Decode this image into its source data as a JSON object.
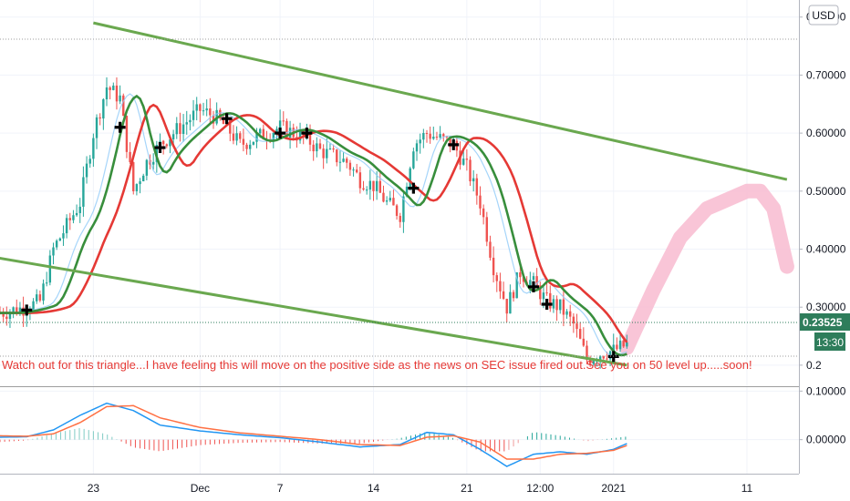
{
  "currency_badge": "USD",
  "price_tag": "0.23525",
  "countdown_tag": "13:30",
  "annotation": "Watch out for this triangle...I have feeling this will move on the positive side as the news on SEC issue fired out.See you on  50 level up.....soon!",
  "colors": {
    "up_candle": "#26a69a",
    "down_candle": "#ef5350",
    "trendline": "#6aa84f",
    "ema_fast": "#388e3c",
    "ema_slow": "#e53935",
    "projection": "#f8bbd0",
    "macd_line": "#2196f3",
    "signal_line": "#ff7043",
    "price_tag_bg": "#2e7d5b"
  },
  "chart_data": [
    {
      "type": "candlestick",
      "title": "",
      "ylabel": "USD",
      "ylim": [
        0.17,
        0.82
      ],
      "y_ticks": [
        "0.80000",
        "0.70000",
        "0.60000",
        "0.50000",
        "0.40000",
        "0.30000",
        "0.2"
      ],
      "x_ticks": [
        "23",
        "Dec",
        "7",
        "14",
        "21",
        "12:00",
        "2021",
        "11"
      ],
      "x_domain": [
        "2020-11-16",
        "2021-01-14"
      ],
      "last_price": 0.23525,
      "close_path": [
        [
          "2020-11-16",
          0.29
        ],
        [
          "2020-11-18",
          0.3
        ],
        [
          "2020-11-19",
          0.31
        ],
        [
          "2020-11-20",
          0.4
        ],
        [
          "2020-11-21",
          0.44
        ],
        [
          "2020-11-22",
          0.48
        ],
        [
          "2020-11-23",
          0.6
        ],
        [
          "2020-11-24",
          0.68
        ],
        [
          "2020-11-25",
          0.66
        ],
        [
          "2020-11-26",
          0.5
        ],
        [
          "2020-11-27",
          0.55
        ],
        [
          "2020-11-28",
          0.58
        ],
        [
          "2020-11-29",
          0.6
        ],
        [
          "2020-11-30",
          0.62
        ],
        [
          "2020-12-01",
          0.64
        ],
        [
          "2020-12-02",
          0.63
        ],
        [
          "2020-12-03",
          0.61
        ],
        [
          "2020-12-04",
          0.58
        ],
        [
          "2020-12-05",
          0.59
        ],
        [
          "2020-12-06",
          0.6
        ],
        [
          "2020-12-07",
          0.61
        ],
        [
          "2020-12-08",
          0.6
        ],
        [
          "2020-12-09",
          0.59
        ],
        [
          "2020-12-10",
          0.57
        ],
        [
          "2020-12-11",
          0.56
        ],
        [
          "2020-12-12",
          0.55
        ],
        [
          "2020-12-13",
          0.52
        ],
        [
          "2020-12-14",
          0.51
        ],
        [
          "2020-12-15",
          0.48
        ],
        [
          "2020-12-16",
          0.46
        ],
        [
          "2020-12-17",
          0.58
        ],
        [
          "2020-12-18",
          0.6
        ],
        [
          "2020-12-19",
          0.59
        ],
        [
          "2020-12-20",
          0.58
        ],
        [
          "2020-12-21",
          0.54
        ],
        [
          "2020-12-22",
          0.48
        ],
        [
          "2020-12-23",
          0.37
        ],
        [
          "2020-12-24",
          0.3
        ],
        [
          "2020-12-25",
          0.36
        ],
        [
          "2020-12-26",
          0.34
        ],
        [
          "2020-12-27",
          0.31
        ],
        [
          "2020-12-28",
          0.3
        ],
        [
          "2020-12-29",
          0.27
        ],
        [
          "2020-12-30",
          0.21
        ],
        [
          "2020-12-31",
          0.22
        ],
        [
          "2021-01-01",
          0.225
        ],
        [
          "2021-01-02",
          0.23525
        ]
      ],
      "markers": [
        [
          "2020-11-18",
          0.295
        ],
        [
          "2020-11-25",
          0.61
        ],
        [
          "2020-11-28",
          0.575
        ],
        [
          "2020-12-03",
          0.625
        ],
        [
          "2020-12-07",
          0.6
        ],
        [
          "2020-12-09",
          0.6
        ],
        [
          "2020-12-17",
          0.505
        ],
        [
          "2020-12-20",
          0.58
        ],
        [
          "2020-12-26",
          0.335
        ],
        [
          "2020-12-27",
          0.305
        ],
        [
          "2021-01-01",
          0.215
        ]
      ],
      "trendlines": [
        {
          "from": [
            "2020-11-23",
            0.79
          ],
          "to": [
            "2021-01-14",
            0.52
          ]
        },
        {
          "from": [
            "2020-11-12",
            0.4
          ],
          "to": [
            "2021-01-02",
            0.2
          ]
        }
      ],
      "projection": [
        [
          "2021-01-02",
          0.23
        ],
        [
          "2021-01-04",
          0.33
        ],
        [
          "2021-01-06",
          0.42
        ],
        [
          "2021-01-08",
          0.47
        ],
        [
          "2021-01-09",
          0.48
        ],
        [
          "2021-01-11",
          0.5
        ],
        [
          "2021-01-12",
          0.5
        ],
        [
          "2021-01-13",
          0.47
        ],
        [
          "2021-01-14",
          0.37
        ]
      ]
    },
    {
      "type": "macd",
      "ylim": [
        -0.07,
        0.11
      ],
      "y_ticks": [
        "0.10000",
        "0.00000"
      ],
      "macd": [
        [
          "2020-11-16",
          0.005
        ],
        [
          "2020-11-18",
          0.006
        ],
        [
          "2020-11-20",
          0.02
        ],
        [
          "2020-11-22",
          0.05
        ],
        [
          "2020-11-24",
          0.075
        ],
        [
          "2020-11-26",
          0.06
        ],
        [
          "2020-11-28",
          0.03
        ],
        [
          "2020-12-01",
          0.018
        ],
        [
          "2020-12-04",
          0.01
        ],
        [
          "2020-12-07",
          0.004
        ],
        [
          "2020-12-10",
          -0.005
        ],
        [
          "2020-12-13",
          -0.015
        ],
        [
          "2020-12-16",
          -0.01
        ],
        [
          "2020-12-18",
          0.015
        ],
        [
          "2020-12-20",
          0.01
        ],
        [
          "2020-12-22",
          -0.02
        ],
        [
          "2020-12-24",
          -0.055
        ],
        [
          "2020-12-26",
          -0.03
        ],
        [
          "2020-12-28",
          -0.025
        ],
        [
          "2020-12-30",
          -0.03
        ],
        [
          "2021-01-01",
          -0.02
        ],
        [
          "2021-01-02",
          -0.008
        ]
      ],
      "signal": [
        [
          "2020-11-16",
          0.008
        ],
        [
          "2020-11-18",
          0.007
        ],
        [
          "2020-11-20",
          0.012
        ],
        [
          "2020-11-22",
          0.035
        ],
        [
          "2020-11-24",
          0.068
        ],
        [
          "2020-11-26",
          0.07
        ],
        [
          "2020-11-28",
          0.045
        ],
        [
          "2020-12-01",
          0.025
        ],
        [
          "2020-12-04",
          0.014
        ],
        [
          "2020-12-07",
          0.007
        ],
        [
          "2020-12-10",
          0.0
        ],
        [
          "2020-12-13",
          -0.01
        ],
        [
          "2020-12-16",
          -0.012
        ],
        [
          "2020-12-18",
          0.005
        ],
        [
          "2020-12-20",
          0.008
        ],
        [
          "2020-12-22",
          -0.005
        ],
        [
          "2020-12-24",
          -0.04
        ],
        [
          "2020-12-26",
          -0.04
        ],
        [
          "2020-12-28",
          -0.03
        ],
        [
          "2020-12-30",
          -0.028
        ],
        [
          "2021-01-01",
          -0.022
        ],
        [
          "2021-01-02",
          -0.012
        ]
      ]
    }
  ]
}
